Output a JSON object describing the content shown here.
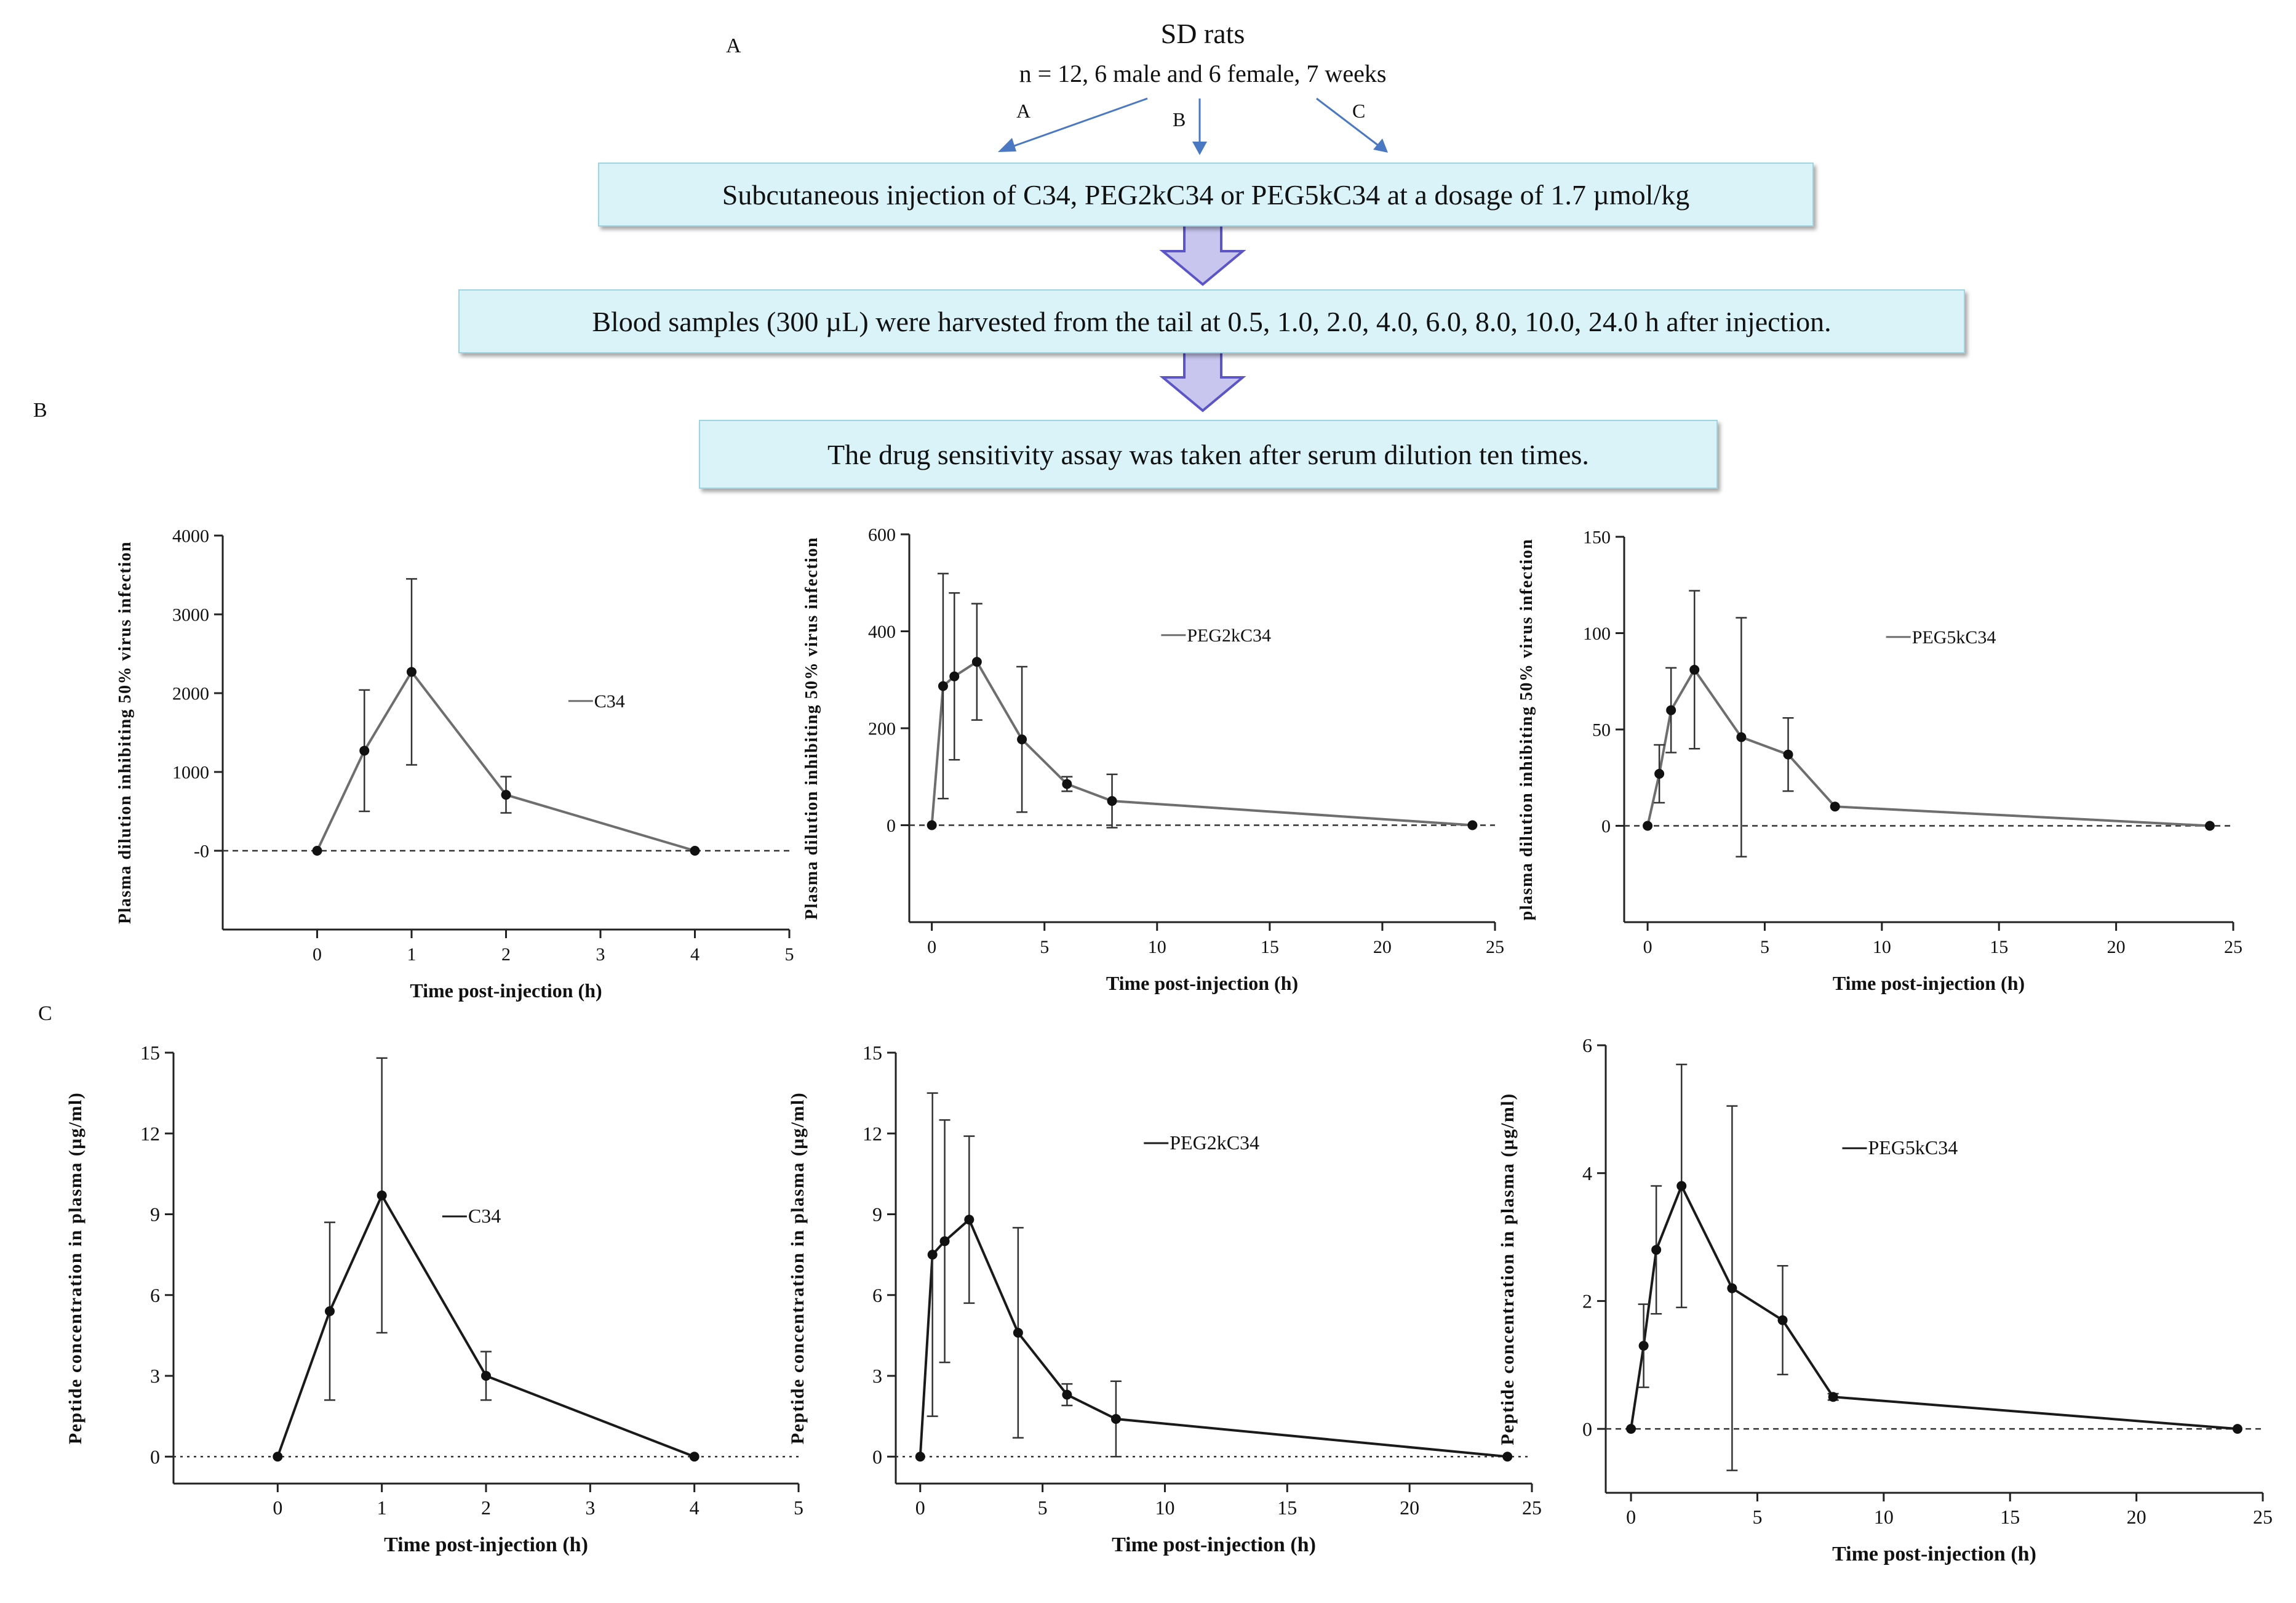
{
  "panel_letters": {
    "a": "A",
    "b": "B",
    "c": "C"
  },
  "flowchart": {
    "title": "SD rats",
    "subtitle": "n = 12, 6 male and 6 female, 7 weeks",
    "branches": [
      "A",
      "B",
      "C"
    ],
    "steps": [
      "Subcutaneous injection of C34, PEG2kC34 or PEG5kC34 at a dosage of 1.7 µmol/kg",
      "Blood samples (300 µL) were harvested from the tail at 0.5, 1.0, 2.0, 4.0, 6.0, 8.0, 10.0, 24.0 h after injection.",
      "The drug sensitivity assay was taken after serum dilution ten times."
    ],
    "colors": {
      "box_fill": "#d9f3f9",
      "box_border": "#9fd4e2",
      "arrow_fill": "#c8c6ef",
      "arrow_stroke": "#5b55c8",
      "branch_arrow": "#4a78c2"
    }
  },
  "chart_data": [
    {
      "id": "b1",
      "type": "line",
      "panel": "B",
      "xlabel": "Time post-injection (h)",
      "ylabel": "Plasma dilution inhibiting 50% virus infection",
      "xlim": [
        -1,
        5
      ],
      "ylim": [
        -1000,
        4000
      ],
      "xticks": [
        "0",
        "1",
        "2",
        "3",
        "4",
        "5"
      ],
      "yticks": [
        "-0",
        "1000",
        "2000",
        "3000",
        "4000"
      ],
      "legend": "C34",
      "series": [
        {
          "name": "C34",
          "x": [
            0,
            0.5,
            1,
            2,
            4
          ],
          "y": [
            0,
            1270,
            2270,
            710,
            0
          ],
          "err": [
            0,
            770,
            1180,
            230,
            0
          ]
        }
      ],
      "line_color": "#6e6e6e"
    },
    {
      "id": "b2",
      "type": "line",
      "panel": "B",
      "xlabel": "Time post-injection (h)",
      "ylabel": "Plasma dilution inhibiting 50% virus infection",
      "xlim": [
        -1,
        25
      ],
      "ylim": [
        -200,
        600
      ],
      "xticks": [
        "0",
        "5",
        "10",
        "15",
        "20",
        "25"
      ],
      "yticks": [
        "0",
        "200",
        "400",
        "600"
      ],
      "legend": "PEG2kC34",
      "series": [
        {
          "name": "PEG2kC34",
          "x": [
            0,
            0.5,
            1,
            2,
            4,
            6,
            8,
            24
          ],
          "y": [
            0,
            287,
            307,
            337,
            177,
            85,
            50,
            0
          ],
          "err": [
            0,
            232,
            172,
            120,
            150,
            15,
            55,
            0
          ]
        }
      ],
      "line_color": "#6e6e6e"
    },
    {
      "id": "b3",
      "type": "line",
      "panel": "B",
      "xlabel": "Time post-injection (h)",
      "ylabel": "plasma dilution inhibiting 50% virus infection",
      "xlim": [
        -1,
        25
      ],
      "ylim": [
        -50,
        150
      ],
      "xticks": [
        "0",
        "5",
        "10",
        "15",
        "20",
        "25"
      ],
      "yticks": [
        "0",
        "50",
        "100",
        "150"
      ],
      "legend": "PEG5kC34",
      "series": [
        {
          "name": "PEG5kC34",
          "x": [
            0,
            0.5,
            1,
            2,
            4,
            6,
            8,
            24
          ],
          "y": [
            0,
            27,
            60,
            81,
            46,
            37,
            10,
            0
          ],
          "err": [
            0,
            15,
            22,
            41,
            62,
            19,
            0,
            0
          ]
        }
      ],
      "line_color": "#6e6e6e"
    },
    {
      "id": "c1",
      "type": "line",
      "panel": "C",
      "xlabel": "Time post-injection (h)",
      "ylabel": "Peptide concentration in plasma (µg/ml)",
      "xlim": [
        -1,
        5
      ],
      "ylim": [
        -1,
        15
      ],
      "xticks": [
        "0",
        "1",
        "2",
        "3",
        "4",
        "5"
      ],
      "yticks": [
        "0",
        "3",
        "6",
        "9",
        "12",
        "15"
      ],
      "legend": "C34",
      "series": [
        {
          "name": "C34",
          "x": [
            0,
            0.5,
            1,
            2,
            4
          ],
          "y": [
            0,
            5.4,
            9.7,
            3.0,
            0
          ],
          "err": [
            0,
            3.3,
            5.1,
            0.9,
            0
          ]
        }
      ],
      "line_color": "#1a1a1a"
    },
    {
      "id": "c2",
      "type": "line",
      "panel": "C",
      "xlabel": "Time post-injection (h)",
      "ylabel": "Peptide concentration in plasma (µg/ml)",
      "xlim": [
        -1,
        25
      ],
      "ylim": [
        -1,
        15
      ],
      "xticks": [
        "0",
        "5",
        "10",
        "15",
        "20",
        "25"
      ],
      "yticks": [
        "0",
        "3",
        "6",
        "9",
        "12",
        "15"
      ],
      "legend": "PEG2kC34",
      "series": [
        {
          "name": "PEG2kC34",
          "x": [
            0,
            0.5,
            1,
            2,
            4,
            6,
            8,
            24
          ],
          "y": [
            0,
            7.5,
            8.0,
            8.8,
            4.6,
            2.3,
            1.4,
            0
          ],
          "err": [
            0,
            6.0,
            4.5,
            3.1,
            3.9,
            0.4,
            1.4,
            0
          ]
        }
      ],
      "line_color": "#1a1a1a"
    },
    {
      "id": "c3",
      "type": "line",
      "panel": "C",
      "xlabel": "Time post-injection (h)",
      "ylabel": "Peptide concentration in plasma (µg/ml)",
      "xlim": [
        -1,
        25
      ],
      "ylim": [
        -1,
        6
      ],
      "xticks": [
        "0",
        "5",
        "10",
        "15",
        "20",
        "25"
      ],
      "yticks": [
        "0",
        "2",
        "4",
        "6"
      ],
      "legend": "PEG5kC34",
      "series": [
        {
          "name": "PEG5kC34",
          "x": [
            0,
            0.5,
            1,
            2,
            4,
            6,
            8,
            24
          ],
          "y": [
            0,
            1.3,
            2.8,
            3.8,
            2.2,
            1.7,
            0.5,
            0
          ],
          "err": [
            0,
            0.65,
            1.0,
            1.9,
            2.85,
            0.85,
            0.05,
            0
          ]
        }
      ],
      "line_color": "#1a1a1a"
    }
  ]
}
